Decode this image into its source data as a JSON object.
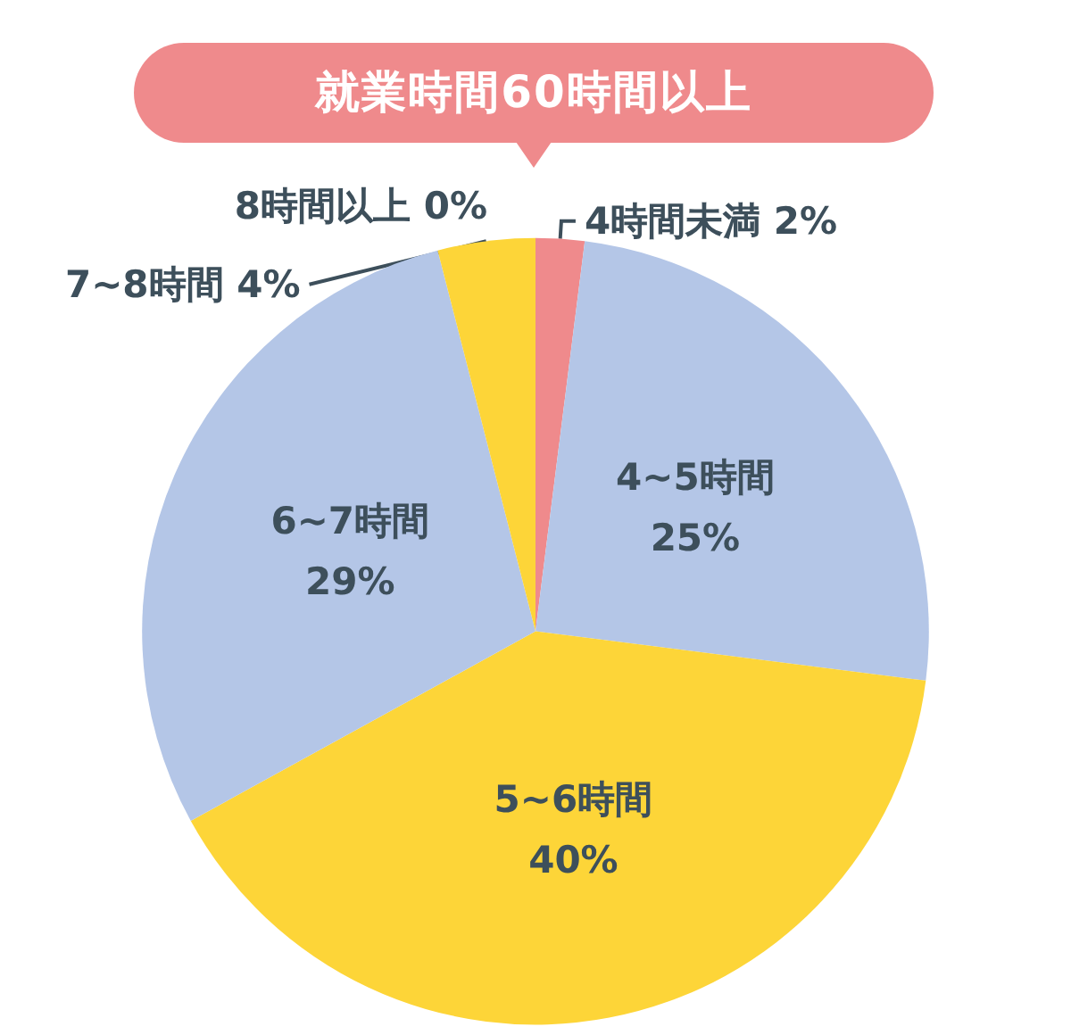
{
  "chart_data": {
    "type": "pie",
    "title": "就業時間60時間以上",
    "categories": [
      "4時間未満",
      "4~5時間",
      "5~6時間",
      "6~7時間",
      "7~8時間",
      "8時間以上"
    ],
    "values": [
      2,
      25,
      40,
      29,
      4,
      0
    ],
    "colors": [
      "#ef8a8c",
      "#b4c6e7",
      "#fdd538",
      "#b4c6e7",
      "#fdd538",
      "#fdd538"
    ],
    "value_labels": [
      "2%",
      "25%",
      "40%",
      "29%",
      "4%",
      "0%"
    ],
    "legend": false
  }
}
